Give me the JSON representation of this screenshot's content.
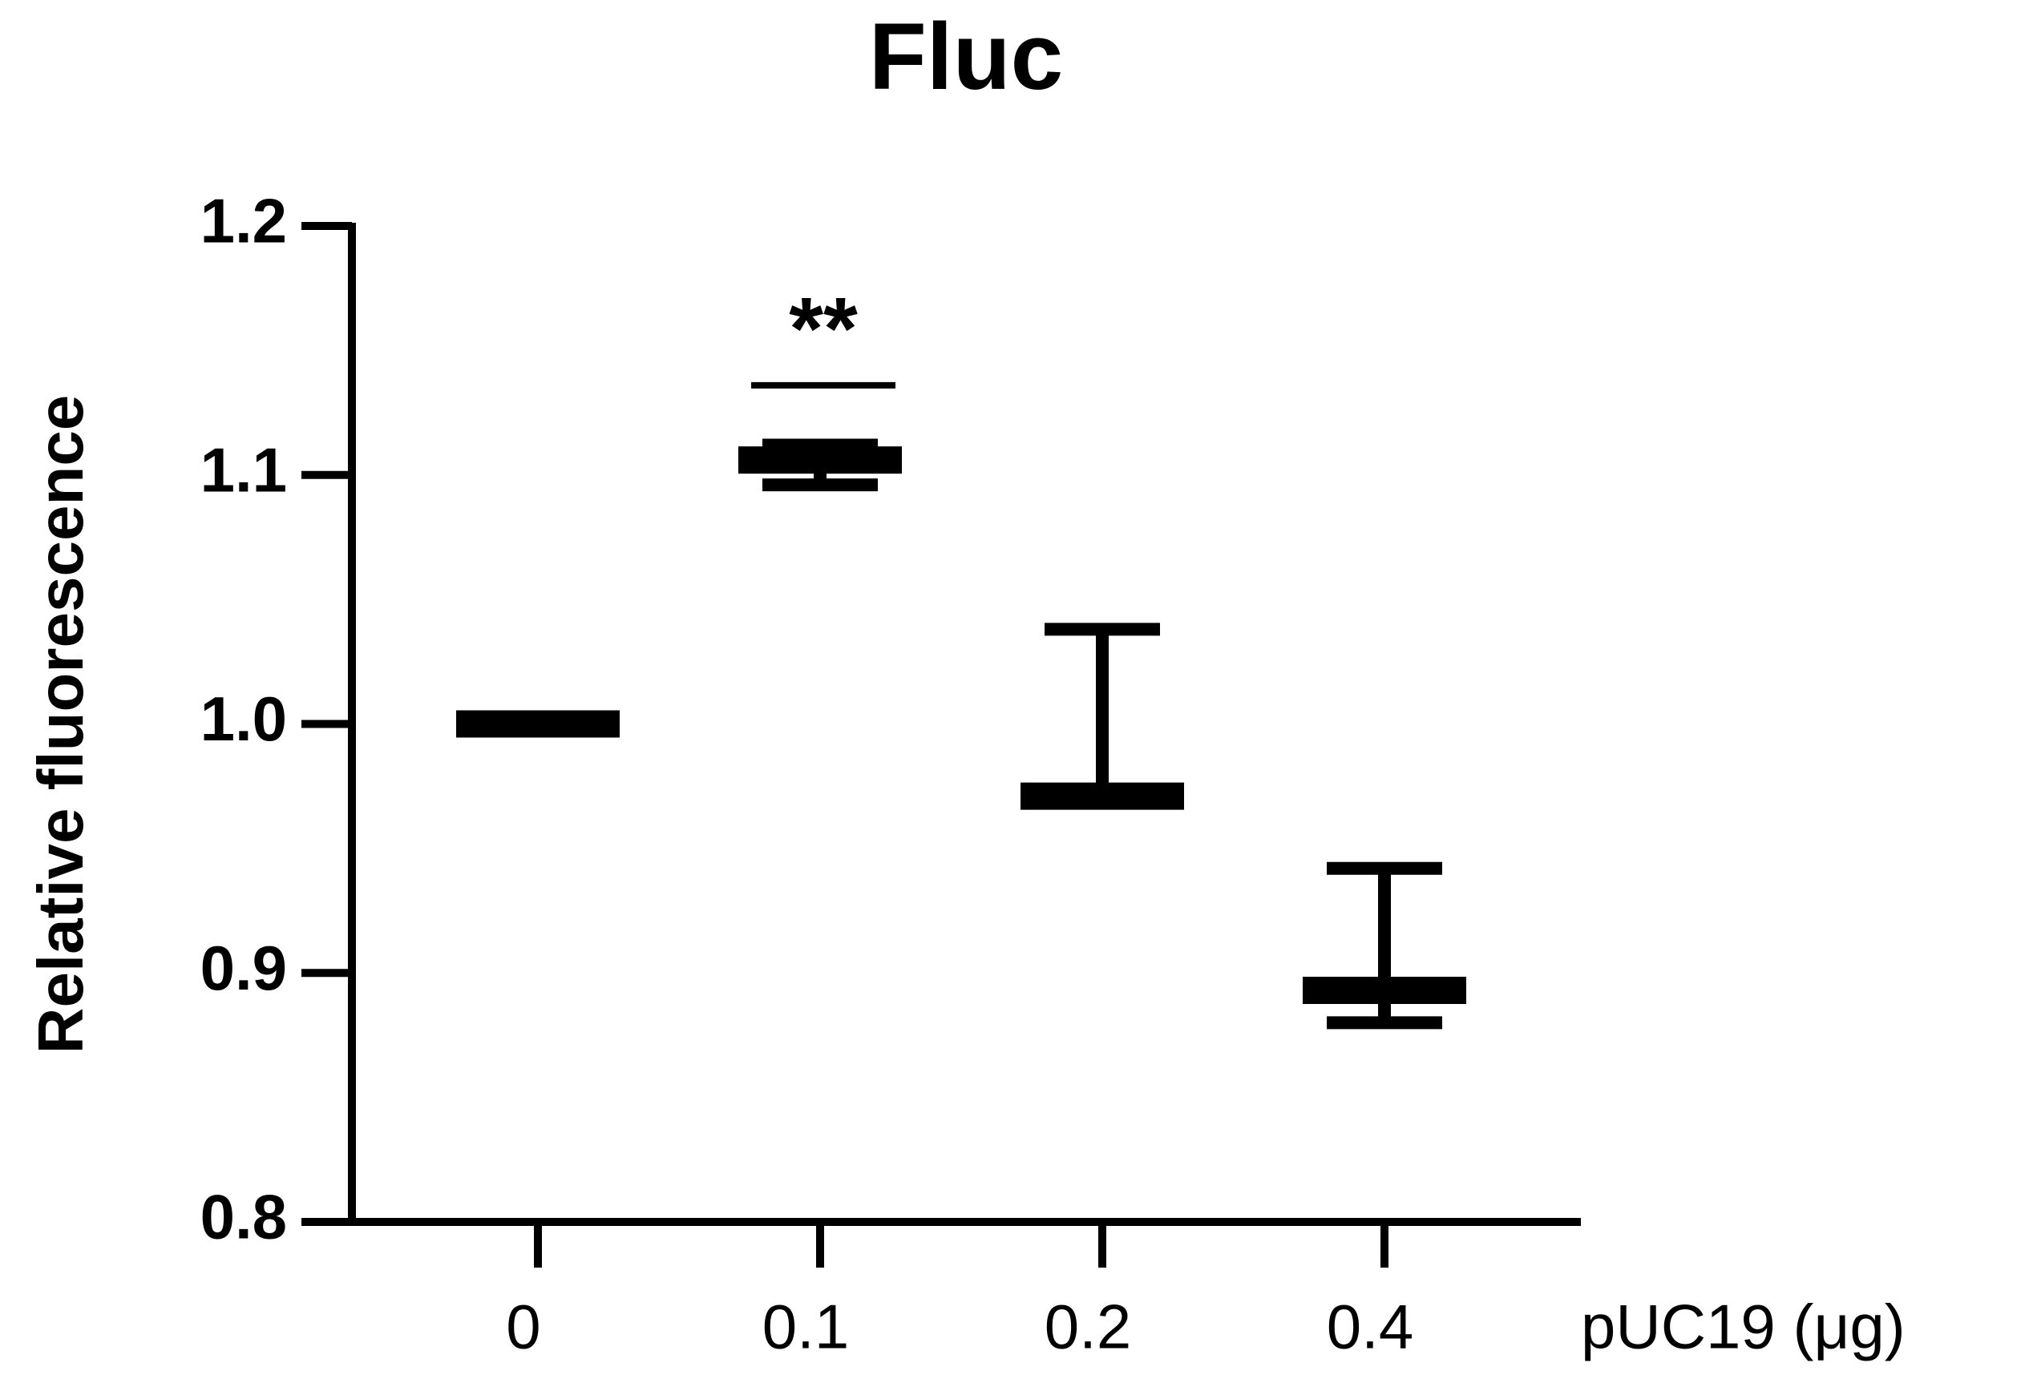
{
  "chart_data": {
    "type": "mean_error",
    "title": "Fluc",
    "y_label": "Relative fluorescence",
    "x_label": "pUC19 (μg)",
    "categories": [
      "0",
      "0.1",
      "0.2",
      "0.4"
    ],
    "values": [
      1.0,
      1.106,
      0.971,
      0.893
    ],
    "err_plus": [
      0,
      0.006,
      0.067,
      0.049
    ],
    "err_minus": [
      0,
      0.01,
      0,
      0.013
    ],
    "color": "#000000",
    "ylim": [
      0.8,
      1.2
    ],
    "yticks": [
      0.8,
      0.9,
      {
        "value": 1,
        "label": "1.0"
      },
      1.1,
      1.2
    ],
    "annotations": [
      {
        "text": "**",
        "category_index": 1,
        "y": 1.136
      }
    ]
  }
}
